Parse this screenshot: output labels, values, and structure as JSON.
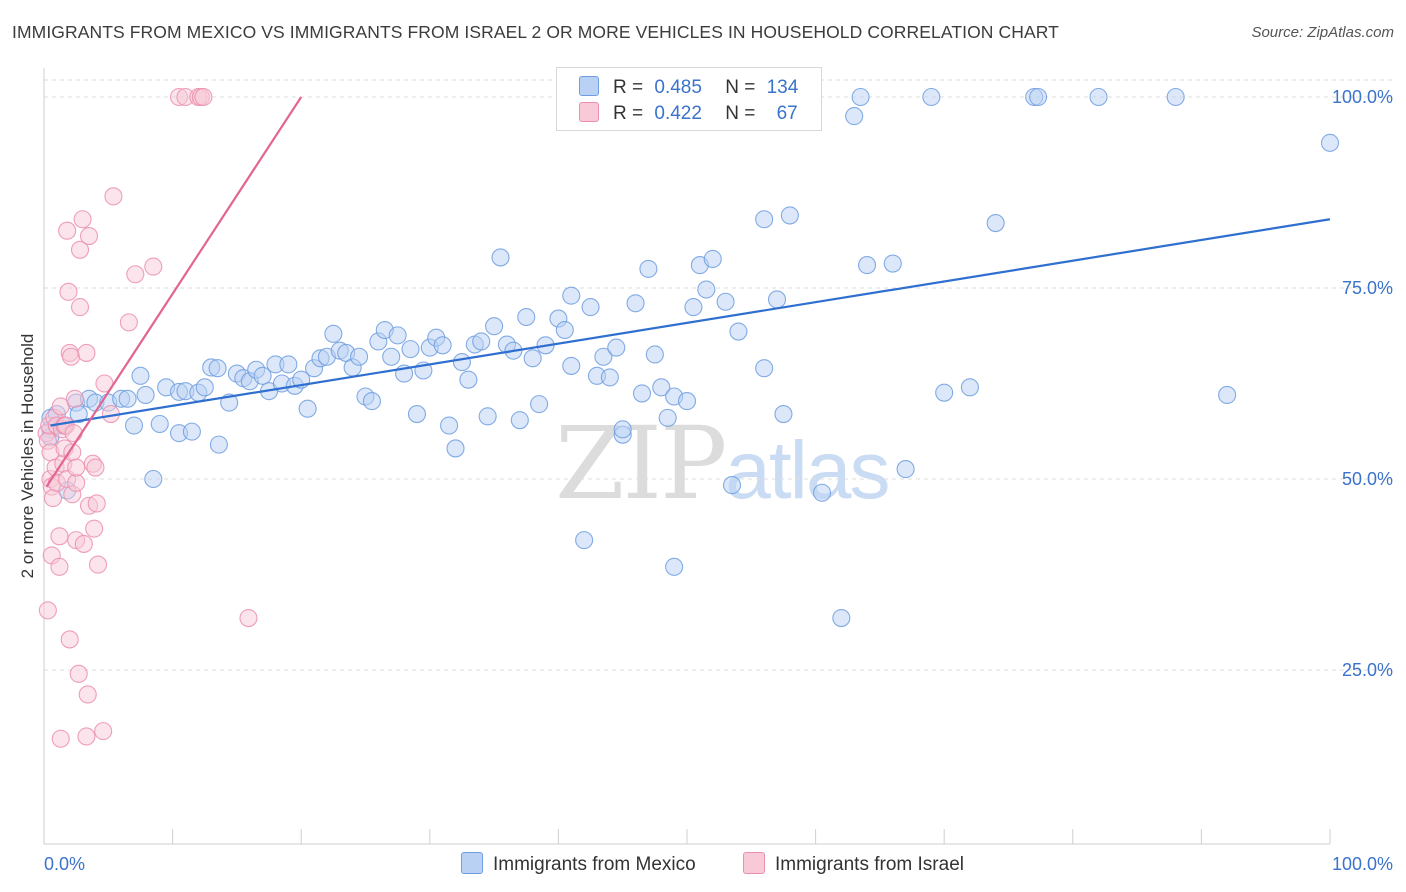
{
  "title": "IMMIGRANTS FROM MEXICO VS IMMIGRANTS FROM ISRAEL 2 OR MORE VEHICLES IN HOUSEHOLD CORRELATION CHART",
  "source": "Source: ZipAtlas.com",
  "watermark": {
    "zip": "ZIP",
    "atlas": "atlas"
  },
  "legend_top": {
    "r_label": "R =",
    "n_label": "N =",
    "rows": [
      {
        "r": "0.485",
        "n": "134"
      },
      {
        "r": "0.422",
        "n": "67"
      }
    ]
  },
  "chart_data": {
    "type": "scatter",
    "title": "IMMIGRANTS FROM MEXICO VS IMMIGRANTS FROM ISRAEL 2 OR MORE VEHICLES IN HOUSEHOLD CORRELATION CHART",
    "xlabel": "",
    "ylabel": "2 or more Vehicles in Household",
    "xlim": [
      0,
      100
    ],
    "ylim": [
      0,
      103
    ],
    "x_tick_labels": [
      "0.0%",
      "100.0%"
    ],
    "y_ticks": [
      25,
      50,
      75,
      100
    ],
    "y_tick_labels": [
      "25.0%",
      "50.0%",
      "75.0%",
      "100.0%"
    ],
    "grid": "horizontal dashed",
    "legend_position": "bottom-center",
    "series": [
      {
        "name": "Immigrants from Mexico",
        "color": "#6f9ee0",
        "fill": "#b9d1f3",
        "line_color": "#2f6fcf",
        "r": 0.485,
        "n": 134,
        "trend": {
          "x": [
            0.5,
            100
          ],
          "y": [
            57.0,
            84.0
          ]
        },
        "points": [
          [
            0.5,
            56.5
          ],
          [
            0.5,
            58
          ],
          [
            0.5,
            55.5
          ],
          [
            1,
            57
          ],
          [
            1,
            58.5
          ],
          [
            1.5,
            57
          ],
          [
            1.8,
            48.5
          ],
          [
            2.5,
            60
          ],
          [
            2.7,
            58.5
          ],
          [
            3.5,
            60.5
          ],
          [
            4,
            60
          ],
          [
            5,
            60
          ],
          [
            6,
            60.5
          ],
          [
            6.5,
            60.5
          ],
          [
            7.5,
            63.5
          ],
          [
            7.9,
            61
          ],
          [
            7,
            57
          ],
          [
            8.5,
            50
          ],
          [
            9,
            57.2
          ],
          [
            9.5,
            62
          ],
          [
            10.5,
            61.4
          ],
          [
            10.5,
            56
          ],
          [
            11,
            61.5
          ],
          [
            11.5,
            56.2
          ],
          [
            12,
            61.3
          ],
          [
            12.5,
            62
          ],
          [
            13,
            64.6
          ],
          [
            13.5,
            64.5
          ],
          [
            13.6,
            54.5
          ],
          [
            14.4,
            60
          ],
          [
            15,
            63.8
          ],
          [
            15.5,
            63.2
          ],
          [
            16,
            62.8
          ],
          [
            16.5,
            64.3
          ],
          [
            17,
            63.5
          ],
          [
            17.5,
            61.5
          ],
          [
            18,
            65
          ],
          [
            18.5,
            62.5
          ],
          [
            19,
            65
          ],
          [
            19.5,
            62.2
          ],
          [
            20,
            63
          ],
          [
            20.5,
            59.2
          ],
          [
            21,
            64.5
          ],
          [
            21.5,
            65.8
          ],
          [
            22,
            66
          ],
          [
            22.5,
            69
          ],
          [
            23,
            66.8
          ],
          [
            23.5,
            66.5
          ],
          [
            24,
            64.6
          ],
          [
            24.5,
            66
          ],
          [
            25,
            60.8
          ],
          [
            25.5,
            60.2
          ],
          [
            26,
            68
          ],
          [
            26.5,
            69.5
          ],
          [
            27,
            66
          ],
          [
            27.5,
            68.8
          ],
          [
            28,
            63.8
          ],
          [
            28.5,
            67
          ],
          [
            29,
            58.5
          ],
          [
            29.5,
            64.2
          ],
          [
            30,
            67.2
          ],
          [
            30.5,
            68.5
          ],
          [
            31,
            67.5
          ],
          [
            31.5,
            57
          ],
          [
            32,
            54
          ],
          [
            32.5,
            65.3
          ],
          [
            33,
            63
          ],
          [
            33.5,
            67.6
          ],
          [
            34,
            68
          ],
          [
            34.5,
            58.2
          ],
          [
            35,
            70
          ],
          [
            35.5,
            79
          ],
          [
            36,
            67.6
          ],
          [
            36.5,
            66.8
          ],
          [
            37,
            57.7
          ],
          [
            37.5,
            71.2
          ],
          [
            38,
            65.8
          ],
          [
            38.5,
            59.8
          ],
          [
            39,
            67.5
          ],
          [
            40,
            71
          ],
          [
            40.5,
            69.5
          ],
          [
            41,
            64.8
          ],
          [
            41,
            74
          ],
          [
            42,
            42
          ],
          [
            42.5,
            72.5
          ],
          [
            43,
            63.5
          ],
          [
            43.5,
            66
          ],
          [
            44,
            63.3
          ],
          [
            44.5,
            67.2
          ],
          [
            45,
            55.8
          ],
          [
            45,
            56.5
          ],
          [
            46,
            73
          ],
          [
            46.5,
            61.2
          ],
          [
            47,
            77.5
          ],
          [
            47.5,
            66.3
          ],
          [
            48,
            62
          ],
          [
            48.5,
            58
          ],
          [
            49,
            38.5
          ],
          [
            49,
            60.8
          ],
          [
            50,
            60.2
          ],
          [
            50.5,
            72.5
          ],
          [
            51,
            78
          ],
          [
            51.5,
            74.8
          ],
          [
            52,
            78.8
          ],
          [
            53,
            73.2
          ],
          [
            54,
            69.3
          ],
          [
            53.5,
            49.2
          ],
          [
            56,
            64.5
          ],
          [
            55,
            100
          ],
          [
            56,
            84
          ],
          [
            57,
            73.5
          ],
          [
            57.5,
            58.5
          ],
          [
            58,
            84.5
          ],
          [
            59,
            100
          ],
          [
            60.5,
            48.2
          ],
          [
            62,
            31.8
          ],
          [
            63,
            97.5
          ],
          [
            63.5,
            100
          ],
          [
            64,
            78
          ],
          [
            66,
            78.2
          ],
          [
            67,
            51.3
          ],
          [
            69,
            100
          ],
          [
            70,
            61.3
          ],
          [
            72,
            62
          ],
          [
            74,
            83.5
          ],
          [
            77,
            100
          ],
          [
            77.3,
            100
          ],
          [
            82,
            100
          ],
          [
            88,
            100
          ],
          [
            92,
            61
          ],
          [
            100,
            94
          ]
        ]
      },
      {
        "name": "Immigrants from Israel",
        "color": "#ec8fae",
        "fill": "#f8c9d7",
        "line_color": "#e26592",
        "r": 0.422,
        "n": 67,
        "trend": {
          "x": [
            0.2,
            20
          ],
          "y": [
            49.0,
            100.0
          ]
        },
        "points": [
          [
            0.2,
            56
          ],
          [
            0.3,
            55
          ],
          [
            0.4,
            57
          ],
          [
            0.5,
            50
          ],
          [
            0.6,
            49
          ],
          [
            0.3,
            32.8
          ],
          [
            0.6,
            40
          ],
          [
            0.5,
            53.5
          ],
          [
            0.7,
            47.5
          ],
          [
            0.8,
            58
          ],
          [
            0.9,
            51.5
          ],
          [
            1,
            57
          ],
          [
            1,
            49.5
          ],
          [
            1.2,
            42.5
          ],
          [
            1.2,
            38.5
          ],
          [
            1.3,
            59.5
          ],
          [
            1.3,
            16
          ],
          [
            1.4,
            56.5
          ],
          [
            1.5,
            52
          ],
          [
            1.6,
            54
          ],
          [
            1.6,
            57
          ],
          [
            1.7,
            57
          ],
          [
            1.8,
            50
          ],
          [
            1.8,
            82.5
          ],
          [
            1.9,
            74.5
          ],
          [
            2,
            66.5
          ],
          [
            2,
            29
          ],
          [
            2.1,
            66
          ],
          [
            2.2,
            48
          ],
          [
            2.2,
            53.5
          ],
          [
            2.3,
            56
          ],
          [
            2.4,
            60.5
          ],
          [
            2.5,
            42
          ],
          [
            2.5,
            49.5
          ],
          [
            2.5,
            51.5
          ],
          [
            2.7,
            24.5
          ],
          [
            2.8,
            72.5
          ],
          [
            2.8,
            80
          ],
          [
            3,
            84
          ],
          [
            3.1,
            41.5
          ],
          [
            3.3,
            66.5
          ],
          [
            3.3,
            16.3
          ],
          [
            3.4,
            21.8
          ],
          [
            3.5,
            46.5
          ],
          [
            3.5,
            81.8
          ],
          [
            3.8,
            52
          ],
          [
            3.9,
            43.5
          ],
          [
            4,
            51.5
          ],
          [
            4.1,
            46.8
          ],
          [
            4.2,
            38.8
          ],
          [
            4.6,
            17
          ],
          [
            4.7,
            62.5
          ],
          [
            5.2,
            58.5
          ],
          [
            5.4,
            87
          ],
          [
            6.6,
            70.5
          ],
          [
            7.1,
            76.8
          ],
          [
            8.5,
            77.8
          ],
          [
            10.5,
            100
          ],
          [
            11,
            100
          ],
          [
            12,
            100
          ],
          [
            12.2,
            100
          ],
          [
            12.4,
            100
          ],
          [
            15.9,
            31.8
          ]
        ]
      }
    ]
  }
}
